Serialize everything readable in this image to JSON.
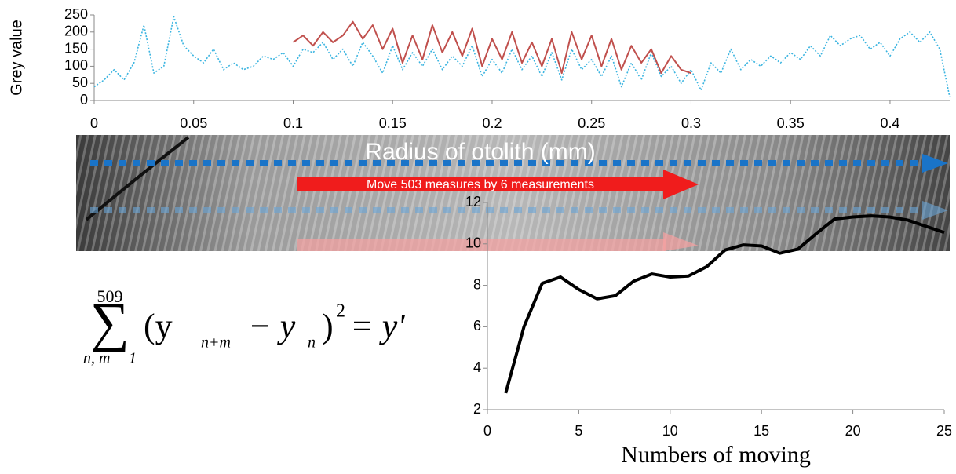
{
  "chart_data": [
    {
      "type": "line",
      "ylabel": "Grey value",
      "xlim": [
        0,
        0.43
      ],
      "xticks": [
        0,
        0.05,
        0.1,
        0.15,
        0.2,
        0.25,
        0.3,
        0.35,
        0.4
      ],
      "ylim": [
        0,
        250
      ],
      "yticks": [
        0,
        50,
        100,
        150,
        200,
        250
      ],
      "series": [
        {
          "color": "#3ab4e0",
          "style": "dotted",
          "x": [
            0,
            0.005,
            0.01,
            0.015,
            0.02,
            0.025,
            0.03,
            0.035,
            0.04,
            0.045,
            0.05,
            0.055,
            0.06,
            0.065,
            0.07,
            0.075,
            0.08,
            0.085,
            0.09,
            0.095,
            0.1,
            0.105,
            0.11,
            0.115,
            0.12,
            0.125,
            0.13,
            0.135,
            0.14,
            0.145,
            0.15,
            0.155,
            0.16,
            0.165,
            0.17,
            0.175,
            0.18,
            0.185,
            0.19,
            0.195,
            0.2,
            0.205,
            0.21,
            0.215,
            0.22,
            0.225,
            0.23,
            0.235,
            0.24,
            0.245,
            0.25,
            0.255,
            0.26,
            0.265,
            0.27,
            0.275,
            0.28,
            0.285,
            0.29,
            0.295,
            0.3,
            0.305,
            0.31,
            0.315,
            0.32,
            0.325,
            0.33,
            0.335,
            0.34,
            0.345,
            0.35,
            0.355,
            0.36,
            0.365,
            0.37,
            0.375,
            0.38,
            0.385,
            0.39,
            0.395,
            0.4,
            0.405,
            0.41,
            0.415,
            0.42,
            0.425,
            0.43
          ],
          "values": [
            40,
            60,
            90,
            60,
            110,
            220,
            80,
            100,
            245,
            160,
            130,
            110,
            150,
            90,
            110,
            90,
            100,
            130,
            120,
            140,
            100,
            150,
            140,
            170,
            120,
            150,
            100,
            170,
            130,
            80,
            160,
            90,
            140,
            100,
            150,
            90,
            130,
            100,
            160,
            70,
            120,
            80,
            150,
            90,
            130,
            70,
            140,
            60,
            150,
            90,
            120,
            70,
            130,
            40,
            110,
            60,
            140,
            70,
            100,
            50,
            90,
            30,
            110,
            80,
            150,
            90,
            120,
            100,
            130,
            110,
            140,
            120,
            160,
            130,
            190,
            160,
            180,
            190,
            150,
            170,
            130,
            180,
            200,
            170,
            200,
            150,
            10
          ]
        },
        {
          "color": "#c0504d",
          "style": "solid",
          "x": [
            0.1,
            0.105,
            0.11,
            0.115,
            0.12,
            0.125,
            0.13,
            0.135,
            0.14,
            0.145,
            0.15,
            0.155,
            0.16,
            0.165,
            0.17,
            0.175,
            0.18,
            0.185,
            0.19,
            0.195,
            0.2,
            0.205,
            0.21,
            0.215,
            0.22,
            0.225,
            0.23,
            0.235,
            0.24,
            0.245,
            0.25,
            0.255,
            0.26,
            0.265,
            0.27,
            0.275,
            0.28,
            0.285,
            0.29,
            0.295,
            0.3
          ],
          "values": [
            170,
            190,
            160,
            200,
            170,
            190,
            230,
            180,
            220,
            150,
            210,
            110,
            190,
            120,
            220,
            140,
            200,
            130,
            210,
            100,
            180,
            120,
            200,
            110,
            170,
            100,
            180,
            80,
            200,
            120,
            190,
            100,
            180,
            90,
            160,
            110,
            150,
            80,
            130,
            90,
            80
          ]
        }
      ]
    },
    {
      "type": "line",
      "xlabel": "Numbers of moving",
      "xlim": [
        0,
        25
      ],
      "xticks": [
        0,
        5,
        10,
        15,
        20,
        25
      ],
      "ylim": [
        2,
        12
      ],
      "yticks": [
        2,
        4,
        6,
        8,
        10,
        12
      ],
      "series": [
        {
          "color": "#000000",
          "x": [
            1,
            2,
            3,
            4,
            5,
            6,
            7,
            8,
            9,
            10,
            11,
            12,
            13,
            14,
            15,
            16,
            17,
            18,
            19,
            20,
            21,
            22,
            23,
            24,
            25
          ],
          "values": [
            2.8,
            6,
            8.1,
            8.4,
            7.8,
            7.35,
            7.5,
            8.2,
            8.55,
            8.4,
            8.45,
            8.9,
            9.7,
            9.95,
            9.9,
            9.55,
            9.75,
            10.5,
            11.2,
            11.3,
            11.35,
            11.3,
            11.15,
            10.85,
            10.55
          ]
        }
      ]
    }
  ],
  "image_band": {
    "title": "Radius of otolith (mm)",
    "arrow_label": "Move  503 measures  by 6 measurements"
  },
  "formula": {
    "upper": "509",
    "symbol": "∑",
    "lower": "n, m = 1",
    "open": "(y",
    "sub1": "n+m",
    "minus": "− y",
    "sub2": "n",
    "close": ")",
    "power": "2",
    "rhs": "= y'"
  }
}
